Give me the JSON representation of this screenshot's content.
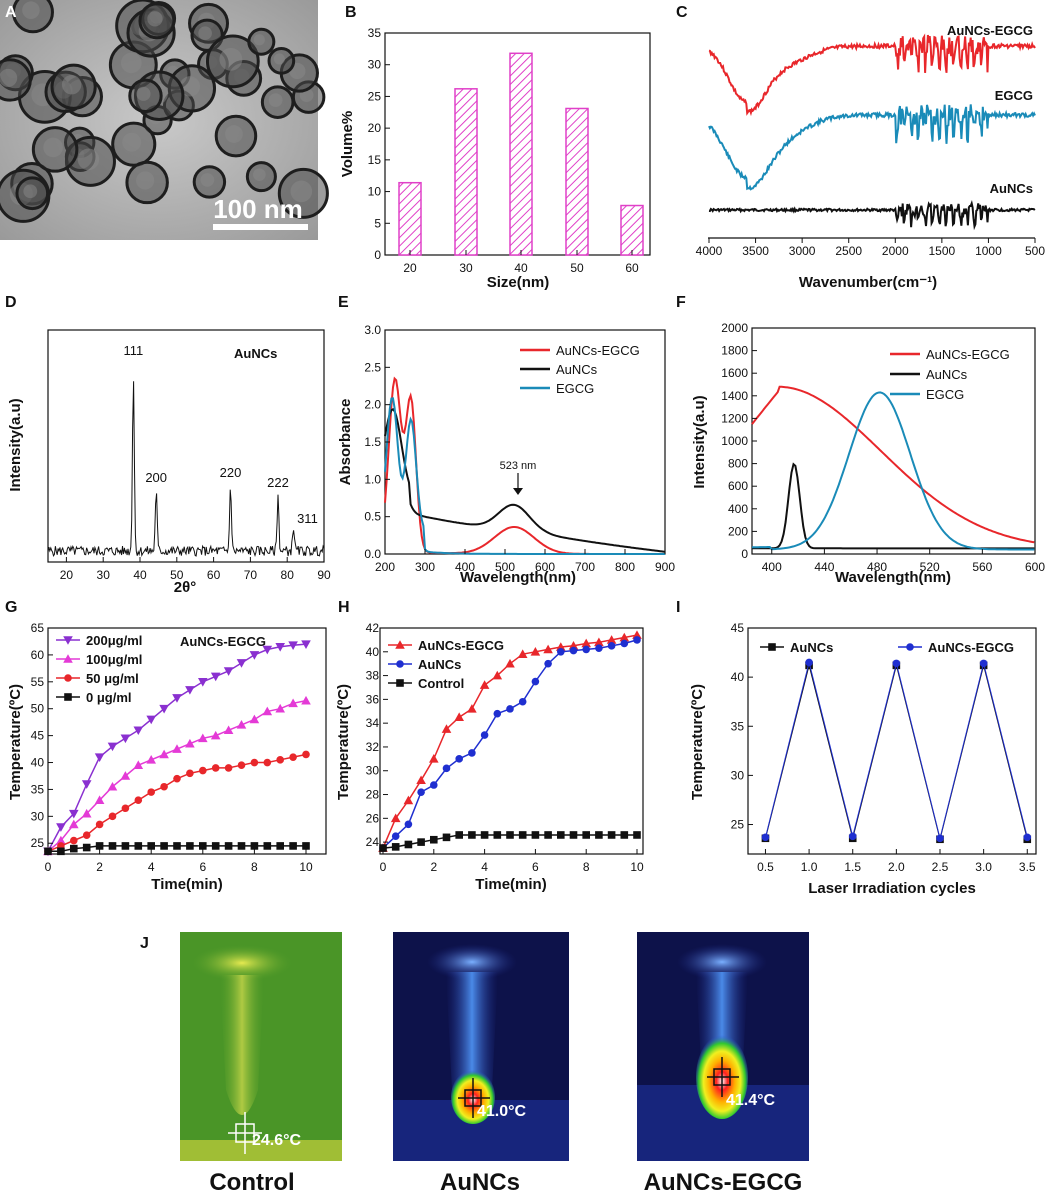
{
  "figure": {
    "panel_labels": {
      "A": "A",
      "B": "B",
      "C": "C",
      "D": "D",
      "E": "E",
      "F": "F",
      "G": "G",
      "H": "H",
      "I": "I",
      "J": "J"
    },
    "tem_scale_bar": "100 nm",
    "thermal_images": [
      {
        "caption": "Control",
        "temperature": "24.6°C"
      },
      {
        "caption": "AuNCs",
        "temperature": "41.0°C"
      },
      {
        "caption": "AuNCs-EGCG",
        "temperature": "41.4°C"
      }
    ],
    "colors": {
      "red": "#e8272b",
      "black": "#111111",
      "blue": "#1a8bb8",
      "navy": "#1f2fd0",
      "purple": "#8a30d0",
      "magenta": "#e43ad6",
      "bar": "#e040c8"
    }
  },
  "chart_data": [
    {
      "id": "B",
      "type": "bar",
      "categories": [
        "20",
        "30",
        "40",
        "50",
        "60"
      ],
      "values": [
        11.4,
        26.2,
        31.8,
        23.1,
        7.8
      ],
      "xlabel": "Size(nm)",
      "ylabel": "Volume%",
      "ylim": [
        0,
        35
      ],
      "yticks": [
        "0",
        "5",
        "10",
        "15",
        "20",
        "25",
        "30",
        "35"
      ]
    },
    {
      "id": "C",
      "type": "line",
      "xlabel": "Wavenumber(cm⁻¹)",
      "xticks": [
        "4000",
        "3500",
        "3000",
        "2500",
        "2000",
        "1500",
        "1000",
        "500"
      ],
      "series": [
        {
          "name": "AuNCs-EGCG",
          "color": "#e8272b"
        },
        {
          "name": "EGCG",
          "color": "#1a8bb8"
        },
        {
          "name": "AuNCs",
          "color": "#111111"
        }
      ]
    },
    {
      "id": "D",
      "type": "line",
      "xlabel": "2θ°",
      "ylabel": "Intensity(a.u)",
      "legend": "AuNCs",
      "xlim": [
        15,
        90
      ],
      "xticks": [
        "20",
        "30",
        "40",
        "50",
        "60",
        "70",
        "80",
        "90"
      ],
      "peaks": [
        {
          "label": "111",
          "x": 38.2
        },
        {
          "label": "200",
          "x": 44.4
        },
        {
          "label": "220",
          "x": 64.6
        },
        {
          "label": "222",
          "x": 77.5
        },
        {
          "label": "311",
          "x": 81.7
        }
      ]
    },
    {
      "id": "E",
      "type": "line",
      "xlabel": "Wavelength(nm)",
      "ylabel": "Absorbance",
      "xlim": [
        200,
        900
      ],
      "ylim": [
        0,
        3.0
      ],
      "xticks": [
        "200",
        "300",
        "400",
        "500",
        "600",
        "700",
        "800",
        "900"
      ],
      "yticks": [
        "0.0",
        "0.5",
        "1.0",
        "1.5",
        "2.0",
        "2.5",
        "3.0"
      ],
      "annotation": "523 nm",
      "series": [
        {
          "name": "AuNCs-EGCG",
          "color": "#e8272b"
        },
        {
          "name": "AuNCs",
          "color": "#111111"
        },
        {
          "name": "EGCG",
          "color": "#1a8bb8"
        }
      ]
    },
    {
      "id": "F",
      "type": "line",
      "xlabel": "Wavelength(nm)",
      "ylabel": "Intensity(a.u)",
      "xlim": [
        385,
        600
      ],
      "ylim": [
        0,
        2000
      ],
      "xticks": [
        "400",
        "440",
        "480",
        "520",
        "560",
        "600"
      ],
      "yticks": [
        "0",
        "200",
        "400",
        "600",
        "800",
        "1000",
        "1200",
        "1400",
        "1600",
        "1800",
        "2000"
      ],
      "series": [
        {
          "name": "AuNCs-EGCG",
          "color": "#e8272b"
        },
        {
          "name": "AuNCs",
          "color": "#111111"
        },
        {
          "name": "EGCG",
          "color": "#1a8bb8"
        }
      ]
    },
    {
      "id": "G",
      "type": "line",
      "xlabel": "Time(min)",
      "ylabel": "Temperature(ºC)",
      "inset_title": "AuNCs-EGCG",
      "xlim": [
        0,
        10
      ],
      "ylim": [
        23,
        65
      ],
      "xticks": [
        "0",
        "2",
        "4",
        "6",
        "8",
        "10"
      ],
      "yticks": [
        "25",
        "30",
        "35",
        "40",
        "45",
        "50",
        "55",
        "60",
        "65"
      ],
      "x": [
        0,
        0.5,
        1,
        1.5,
        2,
        2.5,
        3,
        3.5,
        4,
        4.5,
        5,
        5.5,
        6,
        6.5,
        7,
        7.5,
        8,
        8.5,
        9,
        9.5,
        10
      ],
      "series": [
        {
          "name": "200μg/ml",
          "color": "#8a30d0",
          "marker": "tri-down",
          "values": [
            23.5,
            28,
            30.5,
            36,
            41,
            43,
            44.5,
            46,
            48,
            50,
            52,
            53.5,
            55,
            56,
            57,
            58.5,
            60,
            61,
            61.5,
            61.8,
            62
          ]
        },
        {
          "name": "100μg/ml",
          "color": "#e43ad6",
          "marker": "tri-up",
          "values": [
            23.5,
            25.5,
            28.5,
            30.5,
            33,
            35.5,
            37.5,
            39.5,
            40.5,
            41.5,
            42.5,
            43.5,
            44.5,
            45,
            46,
            47,
            48,
            49.5,
            50,
            51,
            51.5
          ]
        },
        {
          "name": "50 μg/ml",
          "color": "#e8272b",
          "marker": "circle",
          "values": [
            23.5,
            24.5,
            25.5,
            26.5,
            28.5,
            30,
            31.5,
            33,
            34.5,
            35.5,
            37,
            38,
            38.5,
            39,
            39,
            39.5,
            40,
            40,
            40.5,
            41,
            41.5
          ]
        },
        {
          "name": "0  μg/ml",
          "color": "#111111",
          "marker": "square",
          "values": [
            23.5,
            23.5,
            24,
            24.2,
            24.5,
            24.5,
            24.5,
            24.5,
            24.5,
            24.5,
            24.5,
            24.5,
            24.5,
            24.5,
            24.5,
            24.5,
            24.5,
            24.5,
            24.5,
            24.5,
            24.5
          ]
        }
      ]
    },
    {
      "id": "H",
      "type": "line",
      "xlabel": "Time(min)",
      "ylabel": "Temperature(ºC)",
      "xlim": [
        0,
        10
      ],
      "ylim": [
        23,
        42
      ],
      "xticks": [
        "0",
        "2",
        "4",
        "6",
        "8",
        "10"
      ],
      "yticks": [
        "24",
        "26",
        "28",
        "30",
        "32",
        "34",
        "36",
        "38",
        "40",
        "42"
      ],
      "x": [
        0,
        0.5,
        1,
        1.5,
        2,
        2.5,
        3,
        3.5,
        4,
        4.5,
        5,
        5.5,
        6,
        6.5,
        7,
        7.5,
        8,
        8.5,
        9,
        9.5,
        10
      ],
      "series": [
        {
          "name": "AuNCs-EGCG",
          "color": "#e8272b",
          "marker": "tri-up",
          "values": [
            23.5,
            26,
            27.5,
            29.2,
            31,
            33.5,
            34.5,
            35.2,
            37.2,
            38,
            39,
            39.8,
            40,
            40.2,
            40.4,
            40.5,
            40.7,
            40.8,
            41,
            41.2,
            41.4
          ]
        },
        {
          "name": "AuNCs",
          "color": "#1f2fd0",
          "marker": "circle",
          "values": [
            23.5,
            24.5,
            25.5,
            28.2,
            28.8,
            30.2,
            31,
            31.5,
            33,
            34.8,
            35.2,
            35.8,
            37.5,
            39,
            40,
            40.1,
            40.2,
            40.3,
            40.5,
            40.7,
            41
          ]
        },
        {
          "name": "Control",
          "color": "#111111",
          "marker": "square",
          "values": [
            23.5,
            23.6,
            23.8,
            24,
            24.2,
            24.4,
            24.6,
            24.6,
            24.6,
            24.6,
            24.6,
            24.6,
            24.6,
            24.6,
            24.6,
            24.6,
            24.6,
            24.6,
            24.6,
            24.6,
            24.6
          ]
        }
      ]
    },
    {
      "id": "I",
      "type": "line",
      "xlabel": "Laser Irradiation cycles",
      "ylabel": "Temperature(ºC)",
      "xlim": [
        0.3,
        3.6
      ],
      "ylim": [
        22,
        45
      ],
      "xticks": [
        "0.5",
        "1.0",
        "1.5",
        "2.0",
        "2.5",
        "3.0",
        "3.5"
      ],
      "yticks": [
        "25",
        "30",
        "35",
        "40",
        "45"
      ],
      "x": [
        0.5,
        1.0,
        1.5,
        2.0,
        2.5,
        3.0,
        3.5
      ],
      "series": [
        {
          "name": "AuNCs",
          "color": "#111111",
          "marker": "square",
          "values": [
            23.6,
            41.2,
            23.6,
            41.2,
            23.5,
            41.2,
            23.5
          ]
        },
        {
          "name": "AuNCs-EGCG",
          "color": "#1f2fd0",
          "marker": "circle",
          "values": [
            23.7,
            41.5,
            23.8,
            41.4,
            23.6,
            41.4,
            23.7
          ]
        }
      ]
    }
  ]
}
